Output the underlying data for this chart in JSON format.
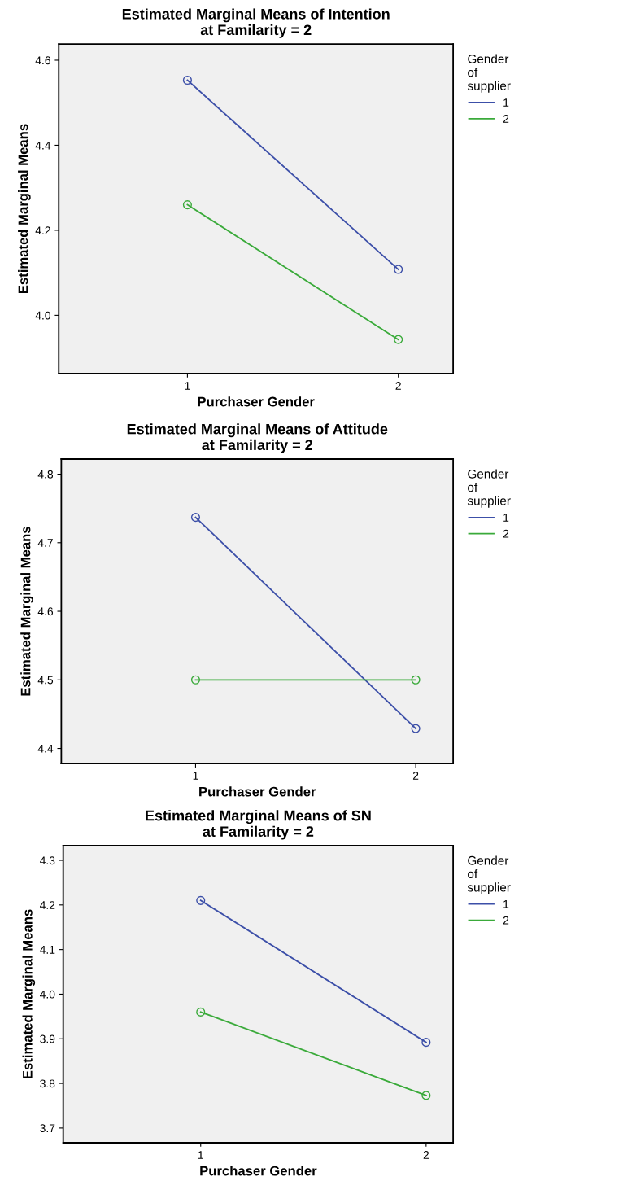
{
  "chart_data": [
    {
      "type": "line",
      "title": "Estimated Marginal Means of Intention\nat Familarity = 2",
      "xlabel": "Purchaser Gender",
      "ylabel": "Estimated Marginal Means",
      "legend_title": "Gender\nof\nsupplier",
      "legend": "right",
      "marker": "circle",
      "grid": false,
      "categories": [
        "1",
        "2"
      ],
      "ylim": [
        3.863,
        4.638
      ],
      "yticks": [
        {
          "value": 4,
          "label": "4.0"
        },
        4.2,
        4.4,
        4.6
      ],
      "series": [
        {
          "name": "1",
          "color": "#3c4fa8",
          "values": [
            4.553,
            4.108
          ]
        },
        {
          "name": "2",
          "color": "#3aaa3a",
          "values": [
            4.26,
            3.943
          ]
        }
      ]
    },
    {
      "type": "line",
      "title": "Estimated Marginal Means of Attitude\nat Familarity = 2",
      "xlabel": "Purchaser Gender",
      "ylabel": "Estimated Marginal Means",
      "legend_title": "Gender\nof\nsupplier",
      "legend": "right",
      "marker": "circle",
      "grid": false,
      "categories": [
        "1",
        "2"
      ],
      "ylim": [
        4.378,
        4.822
      ],
      "yticks": [
        4.4,
        4.5,
        4.6,
        4.7,
        4.8
      ],
      "series": [
        {
          "name": "1",
          "color": "#3c4fa8",
          "values": [
            4.737,
            4.429
          ]
        },
        {
          "name": "2",
          "color": "#3aaa3a",
          "values": [
            4.5,
            4.5
          ]
        }
      ]
    },
    {
      "type": "line",
      "title": "Estimated Marginal Means of SN\nat Familarity = 2",
      "xlabel": "Purchaser Gender",
      "ylabel": "Estimated Marginal Means",
      "legend_title": "Gender\nof\nsupplier",
      "legend": "right",
      "marker": "circle",
      "grid": false,
      "categories": [
        "1",
        "2"
      ],
      "ylim": [
        3.667,
        4.333
      ],
      "yticks": [
        3.7,
        3.8,
        3.9,
        {
          "value": 4,
          "label": "4.0"
        },
        4.1,
        4.2,
        4.3
      ],
      "series": [
        {
          "name": "1",
          "color": "#3c4fa8",
          "values": [
            4.21,
            3.892
          ]
        },
        {
          "name": "2",
          "color": "#3aaa3a",
          "values": [
            3.96,
            3.773
          ]
        }
      ]
    }
  ]
}
